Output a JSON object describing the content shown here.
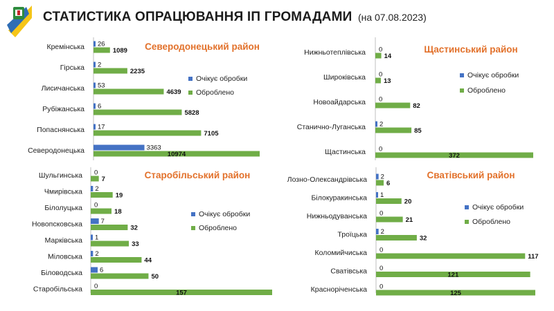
{
  "header": {
    "title": "СТАТИСТИКА ОПРАЦЮВАННЯ ІП ГРОМАДАМИ",
    "date": "(на 07.08.2023)"
  },
  "colors": {
    "pending": "#4472c4",
    "processed": "#70ad47",
    "region_title": "#e2712b",
    "axis": "#bfbfbf"
  },
  "chart_data": [
    {
      "type": "bar",
      "orientation": "horizontal",
      "title": "Северодонецький район",
      "categories": [
        "Кремінська",
        "Гірська",
        "Лисичанська",
        "Рубіжанська",
        "Попаснянська",
        "Северодонецька"
      ],
      "series": [
        {
          "name": "Очікує обробки",
          "values": [
            26,
            2,
            53,
            6,
            17,
            3363
          ]
        },
        {
          "name": "Оброблено",
          "values": [
            1089,
            2235,
            4639,
            5828,
            7105,
            10974
          ]
        }
      ],
      "xlim": [
        0,
        10974
      ]
    },
    {
      "type": "bar",
      "orientation": "horizontal",
      "title": "Щастинський район",
      "categories": [
        "Нижньотеплівська",
        "Широківська",
        "Новоайдарська",
        "Станично-Луганська",
        "Щастинська"
      ],
      "series": [
        {
          "name": "Очікує обробки",
          "values": [
            0,
            0,
            0,
            2,
            0
          ]
        },
        {
          "name": "Оброблено",
          "values": [
            14,
            13,
            82,
            85,
            372
          ]
        }
      ],
      "xlim": [
        0,
        372
      ]
    },
    {
      "type": "bar",
      "orientation": "horizontal",
      "title": "Старобільський район",
      "categories": [
        "Шульгинська",
        "Чмирівська",
        "Білолуцька",
        "Новопсковська",
        "Марківська",
        "Міловська",
        "Біловодська",
        "Старобільська"
      ],
      "series": [
        {
          "name": "Очікує обробки",
          "values": [
            0,
            2,
            0,
            7,
            1,
            2,
            6,
            0
          ]
        },
        {
          "name": "Оброблено",
          "values": [
            7,
            19,
            18,
            32,
            33,
            44,
            50,
            157
          ]
        }
      ],
      "xlim": [
        0,
        157
      ]
    },
    {
      "type": "bar",
      "orientation": "horizontal",
      "title": "Сватівський район",
      "categories": [
        "Лозно-Олександрівська",
        "Білокуракинська",
        "Нижньодуванська",
        "Троїцька",
        "Коломийчиська",
        "Сватівська",
        "Красноріченська"
      ],
      "series": [
        {
          "name": "Очікує обробки",
          "values": [
            2,
            1,
            0,
            2,
            0,
            0,
            0
          ]
        },
        {
          "name": "Оброблено",
          "values": [
            6,
            20,
            21,
            32,
            117,
            121,
            125
          ]
        }
      ],
      "xlim": [
        0,
        125
      ]
    }
  ]
}
